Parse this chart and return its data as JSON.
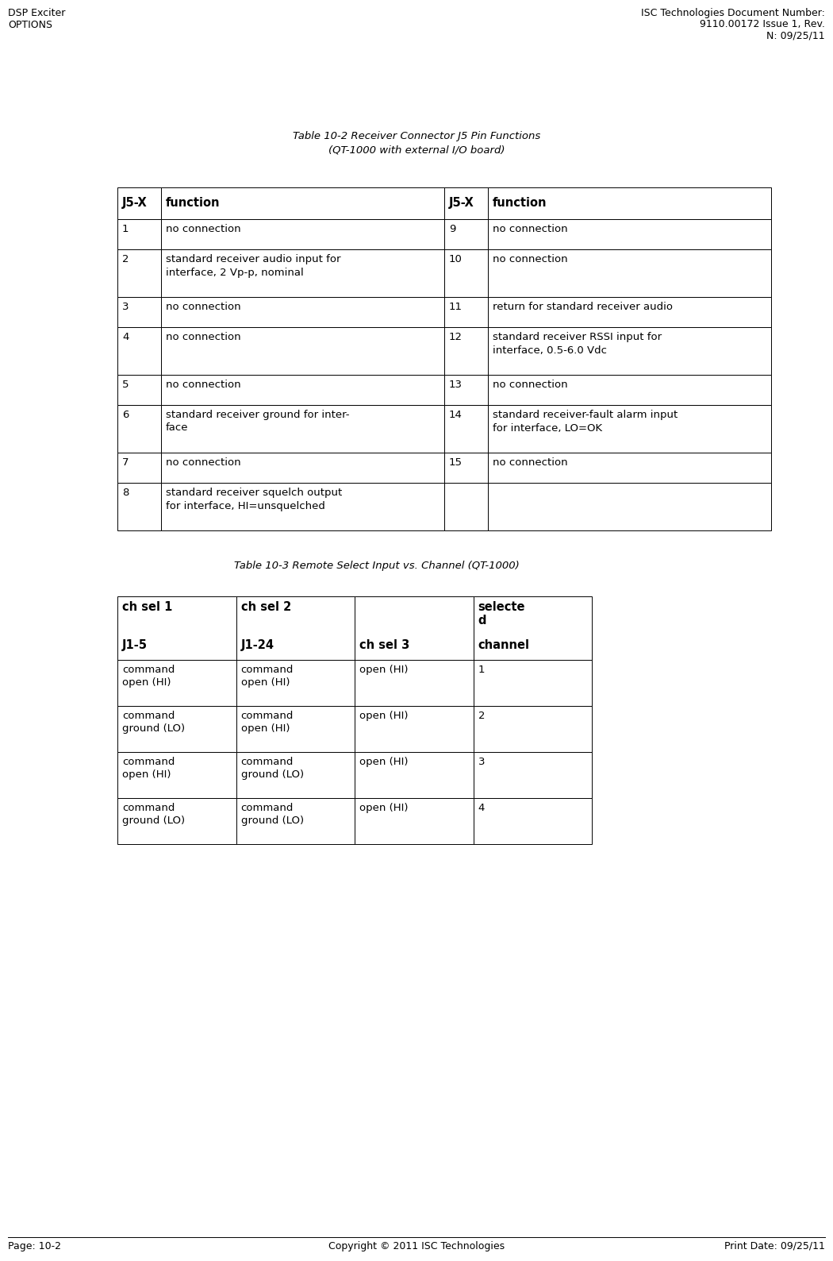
{
  "page_title_left": "DSP Exciter\nOPTIONS",
  "header_right_line1": "ISC Technologies Document Number:",
  "header_right_line2": "9110.00172 Issue 1, Rev.",
  "header_right_line3": "N: 09/25/11",
  "table1_title_line1": "Table 10-2 Receiver Connector J5 Pin Functions",
  "table1_title_line2": "(QT-1000 with external I/O board)",
  "table1_headers": [
    "J5-X",
    "function",
    "J5-X",
    "function"
  ],
  "table1_rows": [
    [
      "1",
      "no connection",
      "9",
      "no connection"
    ],
    [
      "2",
      "standard receiver audio input for\ninterface, 2 Vp-p, nominal",
      "10",
      "no connection"
    ],
    [
      "3",
      "no connection",
      "11",
      "return for standard receiver audio"
    ],
    [
      "4",
      "no connection",
      "12",
      "standard receiver RSSI input for\ninterface, 0.5-6.0 Vdc"
    ],
    [
      "5",
      "no connection",
      "13",
      "no connection"
    ],
    [
      "6",
      "standard receiver ground for inter-\nface",
      "14",
      "standard receiver-fault alarm input\nfor interface, LO=OK"
    ],
    [
      "7",
      "no connection",
      "15",
      "no connection"
    ],
    [
      "8",
      "standard receiver squelch output\nfor interface, HI=unsquelched",
      "",
      ""
    ]
  ],
  "table2_title": "Table 10-3 Remote Select Input vs. Channel (QT-1000)",
  "table2_col1_line1": "ch sel 1",
  "table2_col1_line2": "J1-5",
  "table2_col2_line1": "ch sel 2",
  "table2_col2_line2": "J1-24",
  "table2_col3_line1": "",
  "table2_col3_line2": "ch sel 3",
  "table2_col4_line1": "selecte\nd",
  "table2_col4_line2": "channel",
  "table2_rows": [
    [
      "command\nopen (HI)",
      "command\nopen (HI)",
      "open (HI)",
      "1"
    ],
    [
      "command\nground (LO)",
      "command\nopen (HI)",
      "open (HI)",
      "2"
    ],
    [
      "command\nopen (HI)",
      "command\nground (LO)",
      "open (HI)",
      "3"
    ],
    [
      "command\nground (LO)",
      "command\nground (LO)",
      "open (HI)",
      "4"
    ]
  ],
  "footer_left": "Page: 10-2",
  "footer_center": "Copyright © 2011 ISC Technologies",
  "footer_right": "Print Date: 09/25/11",
  "bg_color": "#ffffff",
  "text_color": "#000000",
  "header_bg": "#ffffff",
  "font_size_body": 9.5,
  "font_size_header": 10.5,
  "font_size_title": 9.5,
  "font_size_footer": 9,
  "font_size_page_header": 9
}
